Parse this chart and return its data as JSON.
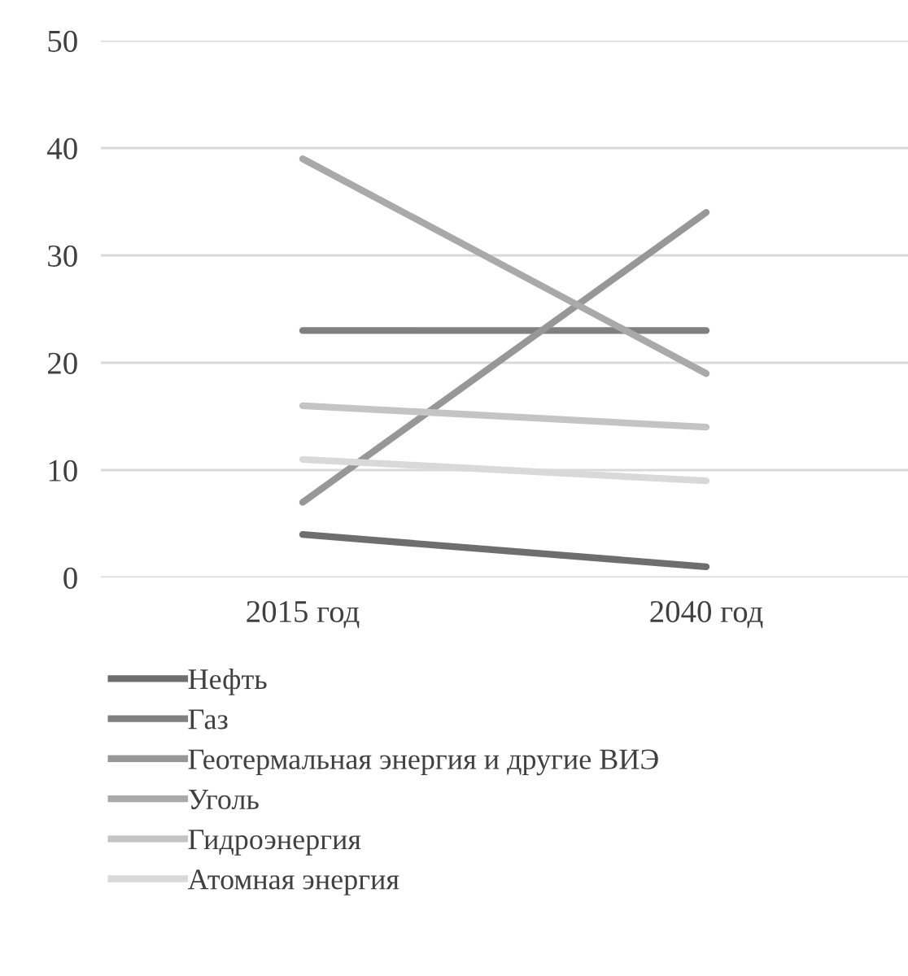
{
  "chart_data": {
    "type": "line",
    "categories": [
      "2015 год",
      "2040 год"
    ],
    "ylim": [
      0,
      50
    ],
    "yticks": [
      0,
      10,
      20,
      30,
      40,
      50
    ],
    "grid": "y",
    "legend": "bottom",
    "series": [
      {
        "name": "Нефть",
        "color": "#6e6e6e",
        "values": [
          4,
          1
        ]
      },
      {
        "name": "Газ",
        "color": "#808080",
        "values": [
          23,
          23
        ]
      },
      {
        "name": "Геотермальная энергия и другие ВИЭ",
        "color": "#979797",
        "values": [
          7,
          34
        ]
      },
      {
        "name": "Уголь",
        "color": "#a9a9a9",
        "values": [
          39,
          19
        ]
      },
      {
        "name": "Гидроэнергия",
        "color": "#c4c4c4",
        "values": [
          16,
          14
        ]
      },
      {
        "name": "Атомная энергия",
        "color": "#d9d9d9",
        "values": [
          11,
          9
        ]
      }
    ]
  }
}
